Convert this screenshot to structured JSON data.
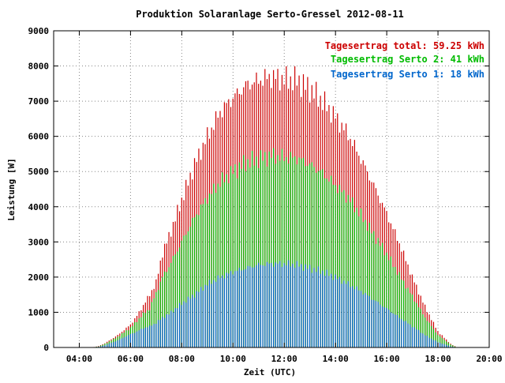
{
  "chart_data": {
    "type": "bar",
    "title": "Produktion Solaranlage Serto-Gressel 2012-08-11",
    "xlabel": "Zeit (UTC)",
    "ylabel": "Leistung [W]",
    "x_unit": "hours UTC",
    "xlim": [
      3.0,
      20.0
    ],
    "ylim": [
      0,
      9000
    ],
    "x_ticks": [
      4,
      6,
      8,
      10,
      12,
      14,
      16,
      18,
      20
    ],
    "x_tick_labels": [
      "04:00",
      "06:00",
      "08:00",
      "10:00",
      "12:00",
      "14:00",
      "16:00",
      "18:00",
      "20:00"
    ],
    "y_ticks": [
      0,
      1000,
      2000,
      3000,
      4000,
      5000,
      6000,
      7000,
      8000,
      9000
    ],
    "y_tick_labels": [
      "0",
      "1000",
      "2000",
      "3000",
      "4000",
      "5000",
      "6000",
      "7000",
      "8000",
      "9000"
    ],
    "grid": true,
    "legend_position": "top-right",
    "bar_interval_hours": 0.0833,
    "series": [
      {
        "name": "Tagesertrag total: 59.25 kWh",
        "color": "#cc0000",
        "profile": [
          [
            4.5,
            0
          ],
          [
            4.75,
            40
          ],
          [
            5.0,
            120
          ],
          [
            5.5,
            350
          ],
          [
            6.0,
            650
          ],
          [
            6.25,
            900
          ],
          [
            6.5,
            1200
          ],
          [
            6.75,
            1500
          ],
          [
            7.0,
            1850
          ],
          [
            7.25,
            2700
          ],
          [
            7.5,
            3150
          ],
          [
            8.0,
            4200
          ],
          [
            8.5,
            5200
          ],
          [
            9.0,
            6000
          ],
          [
            9.5,
            6700
          ],
          [
            10.0,
            7100
          ],
          [
            10.5,
            7450
          ],
          [
            11.0,
            7600
          ],
          [
            11.5,
            7700
          ],
          [
            12.0,
            7620
          ],
          [
            12.5,
            7600
          ],
          [
            13.0,
            7350
          ],
          [
            13.5,
            7000
          ],
          [
            14.0,
            6550
          ],
          [
            14.5,
            6050
          ],
          [
            15.0,
            5350
          ],
          [
            15.5,
            4600
          ],
          [
            16.0,
            3800
          ],
          [
            16.5,
            2950
          ],
          [
            17.0,
            2000
          ],
          [
            17.5,
            1150
          ],
          [
            18.0,
            450
          ],
          [
            18.5,
            100
          ],
          [
            18.75,
            0
          ]
        ]
      },
      {
        "name": "Tagesertrag Serto 2: 41 kWh",
        "color": "#00bb00",
        "profile": [
          [
            4.5,
            0
          ],
          [
            4.75,
            30
          ],
          [
            5.0,
            100
          ],
          [
            5.5,
            300
          ],
          [
            6.0,
            560
          ],
          [
            6.25,
            750
          ],
          [
            6.5,
            950
          ],
          [
            6.75,
            1100
          ],
          [
            7.0,
            1550
          ],
          [
            7.25,
            2000
          ],
          [
            7.5,
            2300
          ],
          [
            8.0,
            3000
          ],
          [
            8.5,
            3700
          ],
          [
            9.0,
            4250
          ],
          [
            9.5,
            4700
          ],
          [
            10.0,
            5000
          ],
          [
            10.5,
            5250
          ],
          [
            11.0,
            5350
          ],
          [
            11.5,
            5450
          ],
          [
            12.0,
            5400
          ],
          [
            12.5,
            5380
          ],
          [
            13.0,
            5200
          ],
          [
            13.5,
            4950
          ],
          [
            14.0,
            4600
          ],
          [
            14.5,
            4250
          ],
          [
            15.0,
            3750
          ],
          [
            15.5,
            3200
          ],
          [
            16.0,
            2650
          ],
          [
            16.5,
            2050
          ],
          [
            17.0,
            1450
          ],
          [
            17.5,
            850
          ],
          [
            18.0,
            350
          ],
          [
            18.5,
            80
          ],
          [
            18.75,
            0
          ]
        ]
      },
      {
        "name": "Tagesertrag Serto 1: 18 kWh",
        "color": "#0066cc",
        "profile": [
          [
            4.5,
            0
          ],
          [
            4.75,
            20
          ],
          [
            5.0,
            60
          ],
          [
            5.5,
            200
          ],
          [
            6.0,
            380
          ],
          [
            6.25,
            450
          ],
          [
            6.5,
            550
          ],
          [
            6.75,
            600
          ],
          [
            7.0,
            700
          ],
          [
            7.25,
            850
          ],
          [
            7.5,
            950
          ],
          [
            8.0,
            1250
          ],
          [
            8.5,
            1500
          ],
          [
            9.0,
            1800
          ],
          [
            9.5,
            2000
          ],
          [
            10.0,
            2150
          ],
          [
            10.5,
            2250
          ],
          [
            11.0,
            2350
          ],
          [
            11.5,
            2380
          ],
          [
            12.0,
            2380
          ],
          [
            12.5,
            2350
          ],
          [
            13.0,
            2250
          ],
          [
            13.5,
            2150
          ],
          [
            14.0,
            2000
          ],
          [
            14.5,
            1800
          ],
          [
            15.0,
            1600
          ],
          [
            15.5,
            1350
          ],
          [
            16.0,
            1100
          ],
          [
            16.5,
            850
          ],
          [
            17.0,
            600
          ],
          [
            17.5,
            350
          ],
          [
            18.0,
            150
          ],
          [
            18.5,
            30
          ],
          [
            18.75,
            0
          ]
        ]
      }
    ]
  }
}
